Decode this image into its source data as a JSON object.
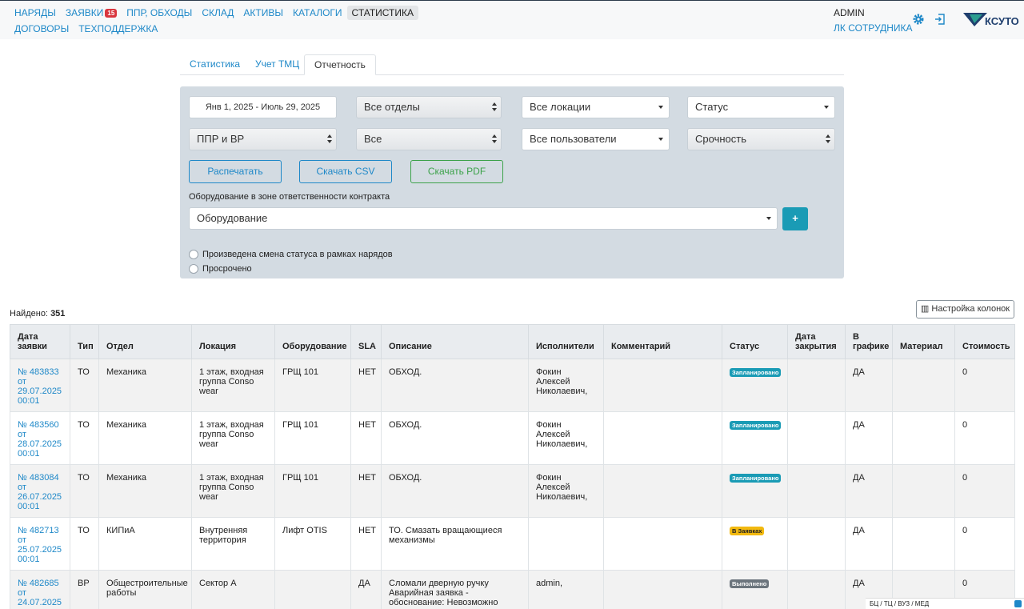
{
  "nav": {
    "row1": [
      {
        "label": "НАРЯДЫ"
      },
      {
        "label": "ЗАЯВКИ",
        "badge": "15"
      },
      {
        "label": "ППР, ОБХОДЫ"
      },
      {
        "label": "СКЛАД"
      },
      {
        "label": "АКТИВЫ"
      },
      {
        "label": "КАТАЛОГИ"
      },
      {
        "label": "СТАТИСТИКА",
        "active": true
      }
    ],
    "row2": [
      {
        "label": "ДОГОВОРЫ"
      },
      {
        "label": "ТЕХПОДДЕРЖКА"
      }
    ]
  },
  "user": {
    "name": "ADMIN",
    "lk": "ЛК СОТРУДНИКА"
  },
  "logo": {
    "text": "КСУТО"
  },
  "tabs": [
    "Статистика",
    "Учет ТМЦ",
    "Отчетность"
  ],
  "filters": {
    "date_range": "Янв 1, 2025 - Июль 29, 2025",
    "departments": "Все отделы",
    "locations": "Все локации",
    "status": "Статус",
    "type": "ППР и ВР",
    "all": "Все",
    "users": "Все пользователи",
    "urgency": "Срочность"
  },
  "buttons": {
    "print": "Распечатать",
    "csv": "Скачать CSV",
    "pdf": "Скачать PDF",
    "plus": "+"
  },
  "equipment": {
    "label": "Оборудование в зоне ответственности контракта",
    "placeholder": "Оборудование"
  },
  "checkboxes": [
    "Произведена смена статуса в рамках нарядов",
    "Просрочено"
  ],
  "found": {
    "label": "Найдено:",
    "count": "351"
  },
  "columns_button": "Настройка колонок",
  "table": {
    "headers": [
      "Дата заявки",
      "Тип",
      "Отдел",
      "Локация",
      "Оборудование",
      "SLA",
      "Описание",
      "Исполнители",
      "Комментарий",
      "Статус",
      "Дата закрытия",
      "В графике",
      "Материал",
      "Стоимость"
    ],
    "rows": [
      {
        "id": "№ 483833",
        "from": "от",
        "date": "29.07.2025",
        "time": "00:01",
        "type": "ТО",
        "dept": "Механика",
        "location": "1 этаж, входная группа Conso wear",
        "equipment": "ГРЩ 101",
        "sla": "НЕТ",
        "description": "ОБХОД.",
        "executors": "Фокин Алексей Николаевич,",
        "comment": "",
        "status": "Запланировано",
        "status_color": "#1a9bb5",
        "closed": "",
        "scheduled": "ДА",
        "material": "",
        "cost": "0"
      },
      {
        "id": "№ 483560",
        "from": "от",
        "date": "28.07.2025",
        "time": "00:01",
        "type": "ТО",
        "dept": "Механика",
        "location": "1 этаж, входная группа Conso wear",
        "equipment": "ГРЩ 101",
        "sla": "НЕТ",
        "description": "ОБХОД.",
        "executors": "Фокин Алексей Николаевич,",
        "comment": "",
        "status": "Запланировано",
        "status_color": "#1a9bb5",
        "closed": "",
        "scheduled": "ДА",
        "material": "",
        "cost": "0"
      },
      {
        "id": "№ 483084",
        "from": "от",
        "date": "26.07.2025",
        "time": "00:01",
        "type": "ТО",
        "dept": "Механика",
        "location": "1 этаж, входная группа Conso wear",
        "equipment": "ГРЩ 101",
        "sla": "НЕТ",
        "description": "ОБХОД.",
        "executors": "Фокин Алексей Николаевич,",
        "comment": "",
        "status": "Запланировано",
        "status_color": "#1a9bb5",
        "closed": "",
        "scheduled": "ДА",
        "material": "",
        "cost": "0"
      },
      {
        "id": "№ 482713",
        "from": "от",
        "date": "25.07.2025",
        "time": "00:01",
        "type": "ТО",
        "dept": "КИПиА",
        "location": "Внутренняя территория",
        "equipment": "Лифт OTIS",
        "sla": "НЕТ",
        "description": "ТО. Смазать вращающиеся механизмы",
        "executors": "",
        "comment": "",
        "status": "В Заявках",
        "status_color": "#f2b90f",
        "closed": "",
        "scheduled": "ДА",
        "material": "",
        "cost": "0"
      },
      {
        "id": "№ 482685",
        "from": "от",
        "date": "24.07.2025",
        "time": "",
        "type": "ВР",
        "dept": "Общестроительные работы",
        "location": "Сектор А",
        "equipment": "",
        "sla": "ДА",
        "description": "Сломали дверную ручку Аварийная заявка - обоснование: Невозможно",
        "executors": "admin,",
        "comment": "",
        "status": "Выполнено",
        "status_color": "#6c757d",
        "closed": "",
        "scheduled": "ДА",
        "material": "",
        "cost": "0"
      }
    ]
  },
  "footer_tag": "БЦ / ТЦ / ВУЗ / МЕД",
  "icons": {
    "settings": "gear-icon",
    "logout": "logout-icon",
    "columns": "columns-icon"
  },
  "colors": {
    "link": "#1e88c8",
    "panel": "#d3dbe2",
    "primary_btn": "#1a9bb5",
    "badge": "#d9363e"
  }
}
